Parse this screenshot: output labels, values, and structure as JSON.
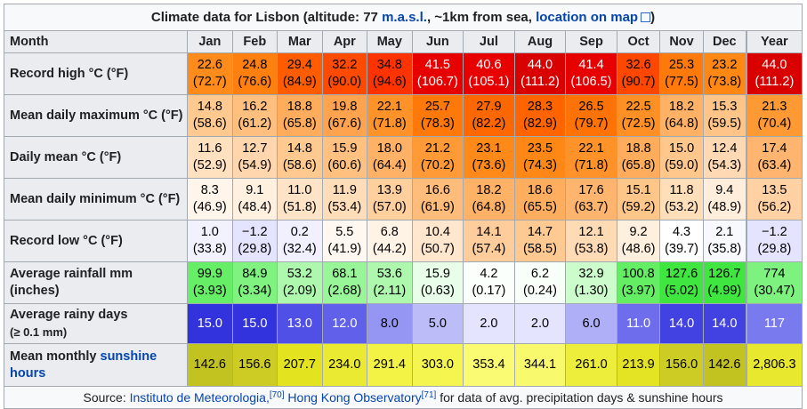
{
  "title": {
    "prefix": "Climate data for Lisbon (altitude: 77 ",
    "masl": "m.a.s.l.",
    "middle": ", ~1km from sea, ",
    "map_link": "location on map",
    "suffix": ")"
  },
  "header": [
    "Month",
    "Jan",
    "Feb",
    "Mar",
    "Apr",
    "May",
    "Jun",
    "Jul",
    "Aug",
    "Sep",
    "Oct",
    "Nov",
    "Dec",
    "Year"
  ],
  "rows": [
    {
      "key": "record-high",
      "label": "Record high °C (°F)",
      "cls": "h46",
      "cells": [
        {
          "c": "22.6",
          "f": "(72.7)",
          "bg": "#ff8c1a",
          "fg": "#000000"
        },
        {
          "c": "24.8",
          "f": "(76.6)",
          "bg": "#ff7f0f",
          "fg": "#000000"
        },
        {
          "c": "29.4",
          "f": "(84.9)",
          "bg": "#ff5c00",
          "fg": "#000000"
        },
        {
          "c": "32.2",
          "f": "(90.0)",
          "bg": "#ff4a00",
          "fg": "#000000"
        },
        {
          "c": "34.8",
          "f": "(94.6)",
          "bg": "#ff3300",
          "fg": "#000000"
        },
        {
          "c": "41.5",
          "f": "(106.7)",
          "bg": "#e60000",
          "fg": "#ffffff"
        },
        {
          "c": "40.6",
          "f": "(105.1)",
          "bg": "#e80000",
          "fg": "#ffffff"
        },
        {
          "c": "44.0",
          "f": "(111.2)",
          "bg": "#d90000",
          "fg": "#ffffff"
        },
        {
          "c": "41.4",
          "f": "(106.5)",
          "bg": "#e60000",
          "fg": "#ffffff"
        },
        {
          "c": "32.6",
          "f": "(90.7)",
          "bg": "#ff4700",
          "fg": "#000000"
        },
        {
          "c": "25.3",
          "f": "(77.5)",
          "bg": "#ff7a0a",
          "fg": "#000000"
        },
        {
          "c": "23.2",
          "f": "(73.8)",
          "bg": "#ff8814",
          "fg": "#000000"
        },
        {
          "c": "44.0",
          "f": "(111.2)",
          "bg": "#d90000",
          "fg": "#ffffff"
        }
      ]
    },
    {
      "key": "mean-max",
      "label": "Mean daily maximum °C (°F)",
      "cls": "h46",
      "cells": [
        {
          "c": "14.8",
          "f": "(58.6)",
          "bg": "#ffc98f",
          "fg": "#000000"
        },
        {
          "c": "16.2",
          "f": "(61.2)",
          "bg": "#ffbf7f",
          "fg": "#000000"
        },
        {
          "c": "18.8",
          "f": "(65.8)",
          "bg": "#ffad5c",
          "fg": "#000000"
        },
        {
          "c": "19.8",
          "f": "(67.6)",
          "bg": "#ffa34f",
          "fg": "#000000"
        },
        {
          "c": "22.1",
          "f": "(71.8)",
          "bg": "#ff9329",
          "fg": "#000000"
        },
        {
          "c": "25.7",
          "f": "(78.3)",
          "bg": "#ff790a",
          "fg": "#000000"
        },
        {
          "c": "27.9",
          "f": "(82.2)",
          "bg": "#ff6800",
          "fg": "#000000"
        },
        {
          "c": "28.3",
          "f": "(82.9)",
          "bg": "#ff6400",
          "fg": "#000000"
        },
        {
          "c": "26.5",
          "f": "(79.7)",
          "bg": "#ff7205",
          "fg": "#000000"
        },
        {
          "c": "22.5",
          "f": "(72.5)",
          "bg": "#ff9025",
          "fg": "#000000"
        },
        {
          "c": "18.2",
          "f": "(64.8)",
          "bg": "#ffb166",
          "fg": "#000000"
        },
        {
          "c": "15.3",
          "f": "(59.5)",
          "bg": "#ffc487",
          "fg": "#000000"
        },
        {
          "c": "21.3",
          "f": "(70.4)",
          "bg": "#ff9933",
          "fg": "#000000"
        }
      ]
    },
    {
      "key": "daily-mean",
      "label": "Daily mean °C (°F)",
      "cls": "h46",
      "cells": [
        {
          "c": "11.6",
          "f": "(52.9)",
          "bg": "#ffe0bf",
          "fg": "#000000"
        },
        {
          "c": "12.7",
          "f": "(54.9)",
          "bg": "#ffd6ad",
          "fg": "#000000"
        },
        {
          "c": "14.8",
          "f": "(58.6)",
          "bg": "#ffc98f",
          "fg": "#000000"
        },
        {
          "c": "15.9",
          "f": "(60.6)",
          "bg": "#ffc080",
          "fg": "#000000"
        },
        {
          "c": "18.0",
          "f": "(64.4)",
          "bg": "#ffb266",
          "fg": "#000000"
        },
        {
          "c": "21.2",
          "f": "(70.2)",
          "bg": "#ff9a36",
          "fg": "#000000"
        },
        {
          "c": "23.1",
          "f": "(73.6)",
          "bg": "#ff8a1a",
          "fg": "#000000"
        },
        {
          "c": "23.5",
          "f": "(74.3)",
          "bg": "#ff8716",
          "fg": "#000000"
        },
        {
          "c": "22.1",
          "f": "(71.8)",
          "bg": "#ff9329",
          "fg": "#000000"
        },
        {
          "c": "18.8",
          "f": "(65.8)",
          "bg": "#ffad5c",
          "fg": "#000000"
        },
        {
          "c": "15.0",
          "f": "(59.0)",
          "bg": "#ffc78b",
          "fg": "#000000"
        },
        {
          "c": "12.4",
          "f": "(54.3)",
          "bg": "#ffd9b3",
          "fg": "#000000"
        },
        {
          "c": "17.4",
          "f": "(63.4)",
          "bg": "#ffb570",
          "fg": "#000000"
        }
      ]
    },
    {
      "key": "mean-min",
      "label": "Mean daily minimum °C (°F)",
      "cls": "h46",
      "cells": [
        {
          "c": "8.3",
          "f": "(46.9)",
          "bg": "#fff5ea",
          "fg": "#000000"
        },
        {
          "c": "9.1",
          "f": "(48.4)",
          "bg": "#fff0e0",
          "fg": "#000000"
        },
        {
          "c": "11.0",
          "f": "(51.8)",
          "bg": "#ffe3c7",
          "fg": "#000000"
        },
        {
          "c": "11.9",
          "f": "(53.4)",
          "bg": "#ffddb8",
          "fg": "#000000"
        },
        {
          "c": "13.9",
          "f": "(57.0)",
          "bg": "#ffcf9e",
          "fg": "#000000"
        },
        {
          "c": "16.6",
          "f": "(61.9)",
          "bg": "#ffbc7a",
          "fg": "#000000"
        },
        {
          "c": "18.2",
          "f": "(64.8)",
          "bg": "#ffb166",
          "fg": "#000000"
        },
        {
          "c": "18.6",
          "f": "(65.5)",
          "bg": "#ffae5f",
          "fg": "#000000"
        },
        {
          "c": "17.6",
          "f": "(63.7)",
          "bg": "#ffb56e",
          "fg": "#000000"
        },
        {
          "c": "15.1",
          "f": "(59.2)",
          "bg": "#ffc689",
          "fg": "#000000"
        },
        {
          "c": "11.8",
          "f": "(53.2)",
          "bg": "#ffdeba",
          "fg": "#000000"
        },
        {
          "c": "9.4",
          "f": "(48.9)",
          "bg": "#ffeedb",
          "fg": "#000000"
        },
        {
          "c": "13.5",
          "f": "(56.2)",
          "bg": "#ffd1a3",
          "fg": "#000000"
        }
      ]
    },
    {
      "key": "record-low",
      "label": "Record low °C (°F)",
      "cls": "h46",
      "cells": [
        {
          "c": "1.0",
          "f": "(33.8)",
          "bg": "#f2f2ff",
          "fg": "#000000"
        },
        {
          "c": "−1.2",
          "f": "(29.8)",
          "bg": "#e4e4ff",
          "fg": "#000000"
        },
        {
          "c": "0.2",
          "f": "(32.4)",
          "bg": "#f0f0ff",
          "fg": "#000000"
        },
        {
          "c": "5.5",
          "f": "(41.9)",
          "bg": "#fff8f0",
          "fg": "#000000"
        },
        {
          "c": "6.8",
          "f": "(44.2)",
          "bg": "#fff3e6",
          "fg": "#000000"
        },
        {
          "c": "10.4",
          "f": "(50.7)",
          "bg": "#ffe6cc",
          "fg": "#000000"
        },
        {
          "c": "14.1",
          "f": "(57.4)",
          "bg": "#ffcd9b",
          "fg": "#000000"
        },
        {
          "c": "14.7",
          "f": "(58.5)",
          "bg": "#ffc992",
          "fg": "#000000"
        },
        {
          "c": "12.1",
          "f": "(53.8)",
          "bg": "#ffdbb5",
          "fg": "#000000"
        },
        {
          "c": "9.2",
          "f": "(48.6)",
          "bg": "#ffefdf",
          "fg": "#000000"
        },
        {
          "c": "4.3",
          "f": "(39.7)",
          "bg": "#ffffff",
          "fg": "#000000"
        },
        {
          "c": "2.1",
          "f": "(35.8)",
          "bg": "#f8f8ff",
          "fg": "#000000"
        },
        {
          "c": "−1.2",
          "f": "(29.8)",
          "bg": "#e4e4ff",
          "fg": "#000000"
        }
      ]
    },
    {
      "key": "rainfall",
      "label": "Average rainfall mm (inches)",
      "cls": "h46",
      "cells": [
        {
          "c": "99.9",
          "f": "(3.93)",
          "bg": "#66ee66",
          "fg": "#000000"
        },
        {
          "c": "84.9",
          "f": "(3.34)",
          "bg": "#7ff27f",
          "fg": "#000000"
        },
        {
          "c": "53.2",
          "f": "(2.09)",
          "bg": "#aef8ae",
          "fg": "#000000"
        },
        {
          "c": "68.1",
          "f": "(2.68)",
          "bg": "#98f598",
          "fg": "#000000"
        },
        {
          "c": "53.6",
          "f": "(2.11)",
          "bg": "#aef8ae",
          "fg": "#000000"
        },
        {
          "c": "15.9",
          "f": "(0.63)",
          "bg": "#e9fee9",
          "fg": "#000000"
        },
        {
          "c": "4.2",
          "f": "(0.17)",
          "bg": "#fbfffb",
          "fg": "#000000"
        },
        {
          "c": "6.2",
          "f": "(0.24)",
          "bg": "#f8fff8",
          "fg": "#000000"
        },
        {
          "c": "32.9",
          "f": "(1.30)",
          "bg": "#ccfbcc",
          "fg": "#000000"
        },
        {
          "c": "100.8",
          "f": "(3.97)",
          "bg": "#64ee64",
          "fg": "#000000"
        },
        {
          "c": "127.6",
          "f": "(5.02)",
          "bg": "#3fe63f",
          "fg": "#000000"
        },
        {
          "c": "126.7",
          "f": "(4.99)",
          "bg": "#40e640",
          "fg": "#000000"
        },
        {
          "c": "774",
          "f": "(30.47)",
          "bg": "#7ef27e",
          "fg": "#000000"
        }
      ]
    },
    {
      "key": "rainy-days",
      "label": "Average rainy days",
      "label_small": "(≥ 0.1 mm)",
      "cls": "h44",
      "cells": [
        {
          "c": "15.0",
          "bg": "#3333dd",
          "fg": "#ffffff"
        },
        {
          "c": "15.0",
          "bg": "#3333dd",
          "fg": "#ffffff"
        },
        {
          "c": "13.0",
          "bg": "#5050e6",
          "fg": "#ffffff"
        },
        {
          "c": "12.0",
          "bg": "#6060ea",
          "fg": "#ffffff"
        },
        {
          "c": "8.0",
          "bg": "#9595f4",
          "fg": "#000000"
        },
        {
          "c": "5.0",
          "bg": "#bcbcf9",
          "fg": "#000000"
        },
        {
          "c": "2.0",
          "bg": "#e4e4fe",
          "fg": "#000000"
        },
        {
          "c": "2.0",
          "bg": "#e4e4fe",
          "fg": "#000000"
        },
        {
          "c": "6.0",
          "bg": "#afaff7",
          "fg": "#000000"
        },
        {
          "c": "11.0",
          "bg": "#6e6eec",
          "fg": "#ffffff"
        },
        {
          "c": "14.0",
          "bg": "#4242e2",
          "fg": "#ffffff"
        },
        {
          "c": "14.0",
          "bg": "#4242e2",
          "fg": "#ffffff"
        },
        {
          "c": "117",
          "bg": "#7a7aef",
          "fg": "#ffffff"
        }
      ]
    },
    {
      "key": "sunshine",
      "label_prefix": "Mean monthly ",
      "label_link": "sunshine",
      "label_suffix": "hours",
      "cls": "h47",
      "cells": [
        {
          "c": "142.6",
          "bg": "#c2c221",
          "fg": "#000000"
        },
        {
          "c": "156.6",
          "bg": "#cccc24",
          "fg": "#000000"
        },
        {
          "c": "207.7",
          "bg": "#e3e31f",
          "fg": "#000000"
        },
        {
          "c": "234.0",
          "bg": "#eaea33",
          "fg": "#000000"
        },
        {
          "c": "291.4",
          "bg": "#f3f346",
          "fg": "#000000"
        },
        {
          "c": "303.0",
          "bg": "#f5f54f",
          "fg": "#000000"
        },
        {
          "c": "353.4",
          "bg": "#fafa73",
          "fg": "#000000"
        },
        {
          "c": "344.1",
          "bg": "#f9f96d",
          "fg": "#000000"
        },
        {
          "c": "261.0",
          "bg": "#eded3c",
          "fg": "#000000"
        },
        {
          "c": "213.9",
          "bg": "#e4e424",
          "fg": "#000000"
        },
        {
          "c": "156.0",
          "bg": "#cccc24",
          "fg": "#000000"
        },
        {
          "c": "142.6",
          "bg": "#c2c221",
          "fg": "#000000"
        },
        {
          "c": "2,806.3",
          "bg": "#e8e82f",
          "fg": "#000000"
        }
      ]
    }
  ],
  "footer": {
    "prefix": "Source: ",
    "source1": "Instituto de Meteorologia,",
    "ref1": "[70]",
    "source2": "Hong Kong Observatory",
    "ref2": "[71]",
    "suffix": " for data of avg. precipitation days & sunshine hours"
  }
}
